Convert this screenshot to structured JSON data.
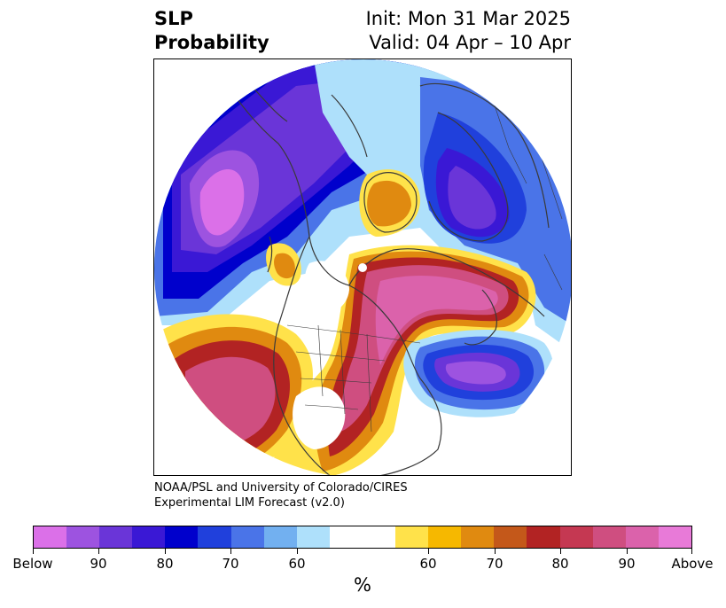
{
  "header": {
    "title_line1": "SLP",
    "title_line2": "Probability",
    "init": "Init: Mon 31 Mar 2025",
    "valid": "Valid: 04 Apr – 10 Apr"
  },
  "credit": {
    "line1": "NOAA/PSL and University of Colorado/CIRES",
    "line2": "Experimental LIM Forecast (v2.0)"
  },
  "colorbar": {
    "colors": [
      "#db70e8",
      "#9d53e0",
      "#6a35d8",
      "#3a18d5",
      "#0000cc",
      "#2040dc",
      "#4a74e8",
      "#72b0f0",
      "#aee0fb",
      "#ffffff",
      "#ffe24a",
      "#f6b800",
      "#e08a10",
      "#c4581a",
      "#b22323",
      "#c53852",
      "#cf4e80",
      "#db62ab",
      "#e87ad8"
    ],
    "labels": [
      "Below",
      "90",
      "80",
      "70",
      "60",
      "60",
      "70",
      "80",
      "90",
      "Above"
    ],
    "unit": "%"
  },
  "map": {
    "projection": "north polar stereographic",
    "features": [
      "continent outlines",
      "country borders",
      "state borders"
    ]
  }
}
